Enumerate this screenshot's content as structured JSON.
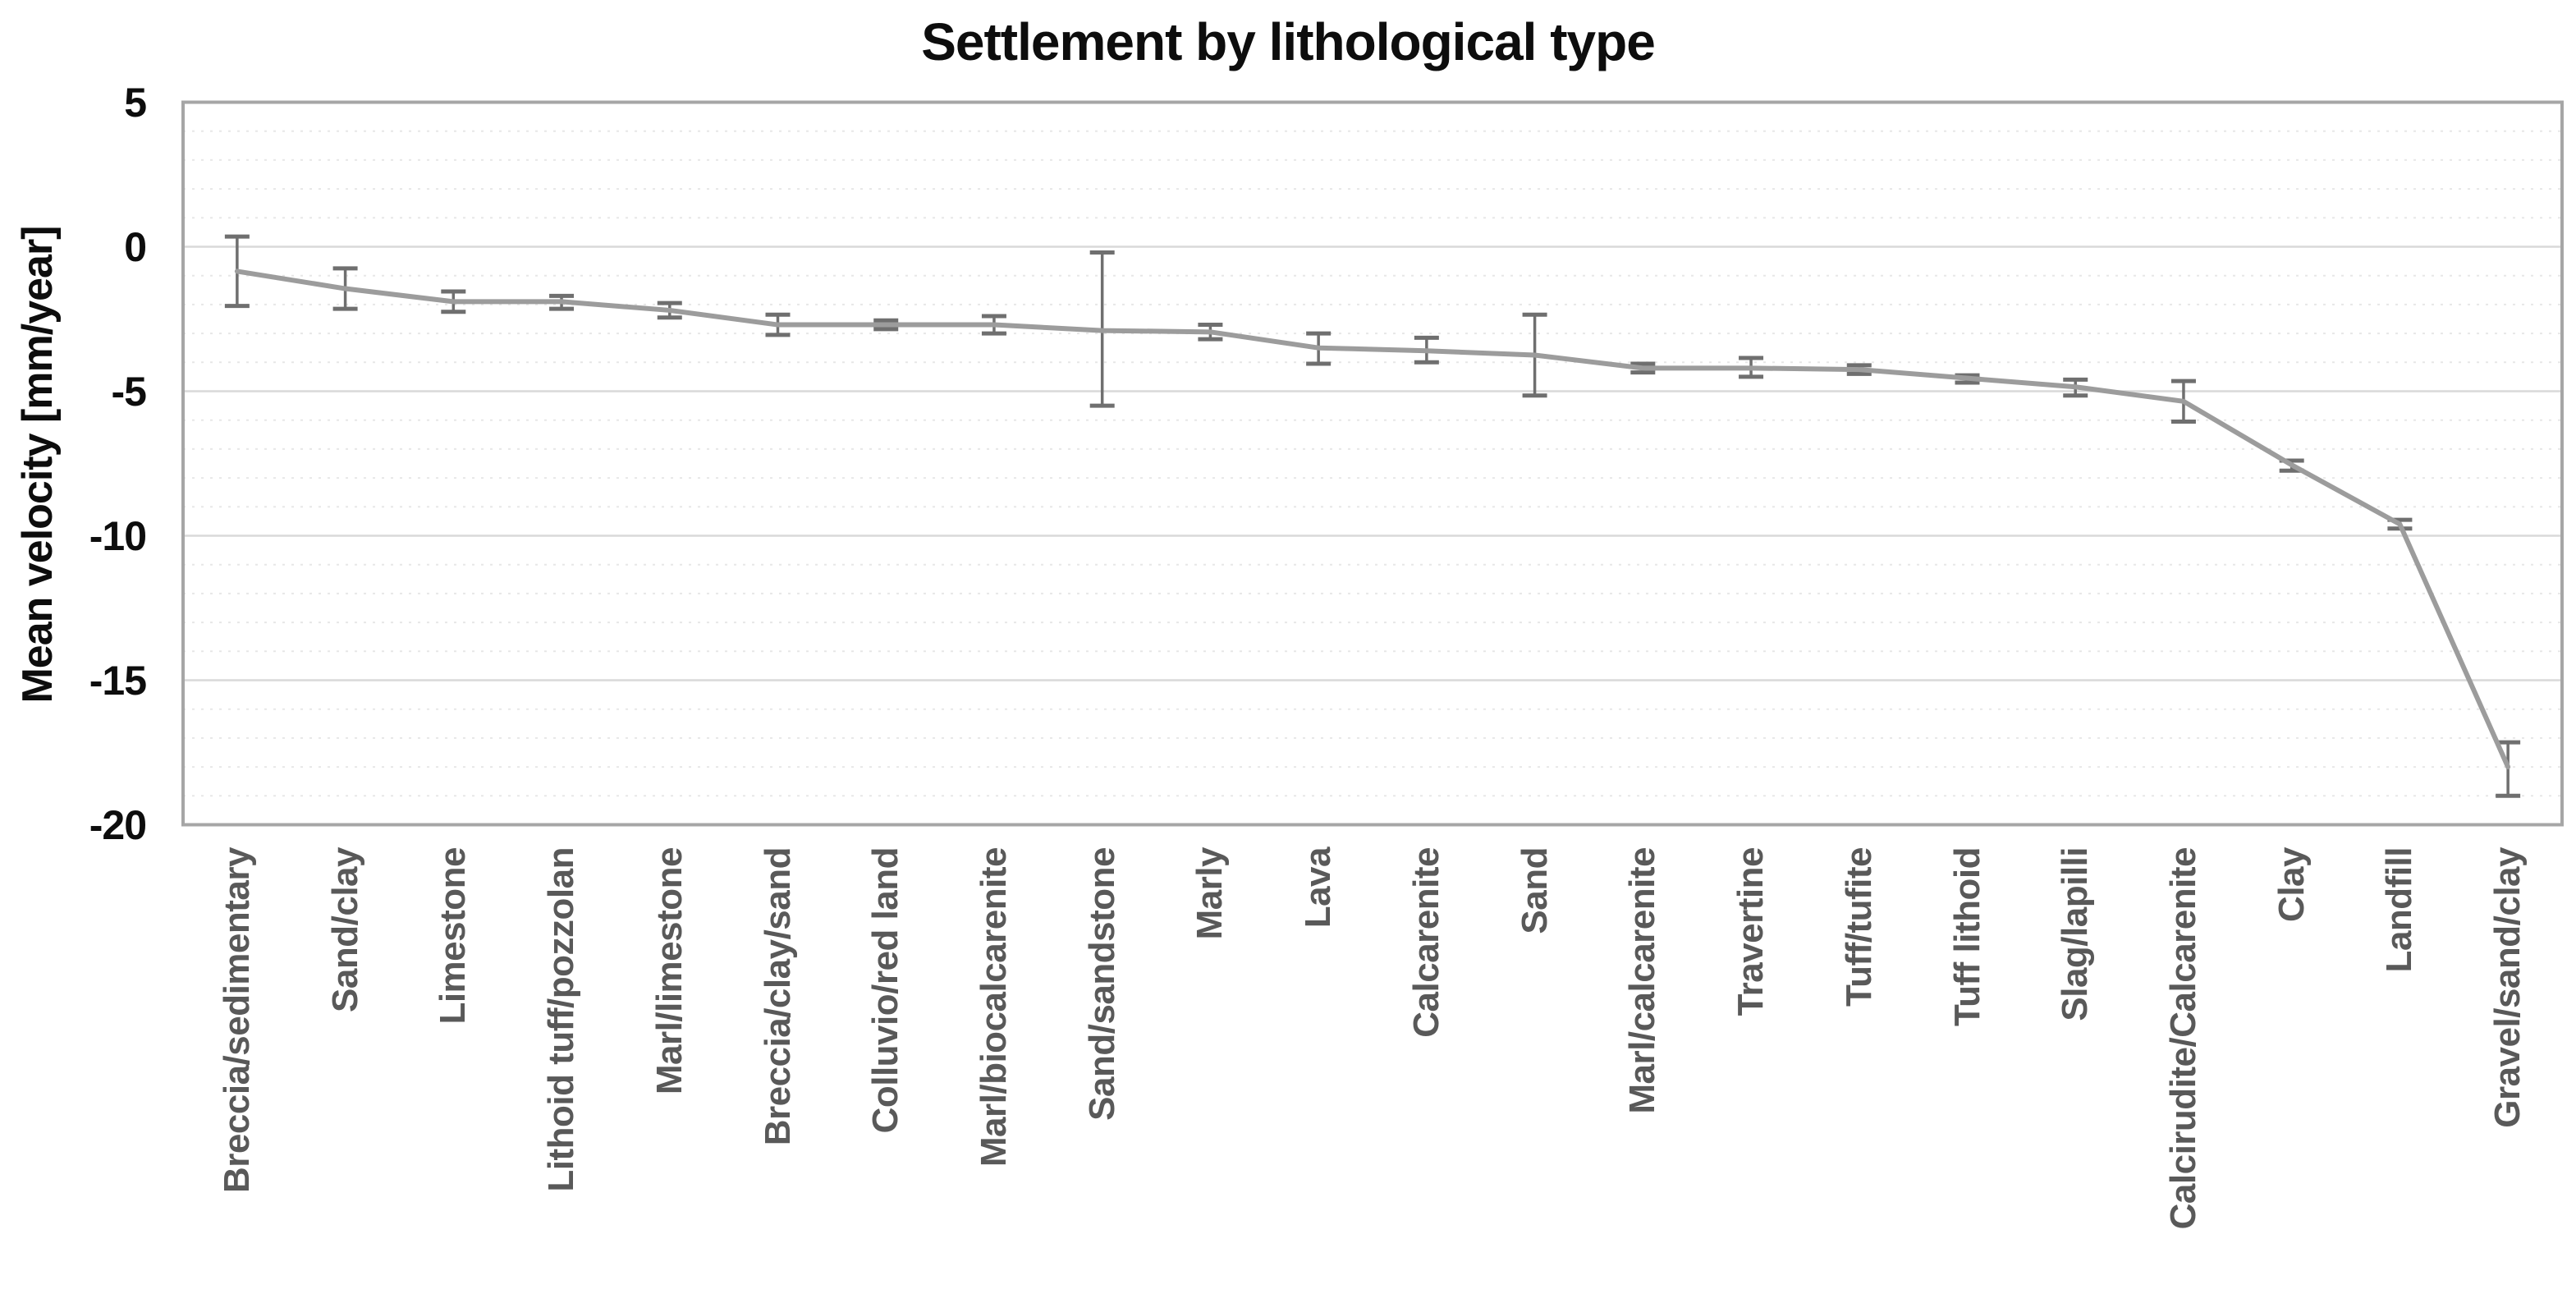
{
  "title": "Settlement by lithological type",
  "y_axis": {
    "label": "Mean velocity [mm/year]",
    "tick_labels": [
      "5",
      "0",
      "-5",
      "-10",
      "-15",
      "-20"
    ],
    "tick_values": [
      5,
      0,
      -5,
      -10,
      -15,
      -20
    ]
  },
  "colors": {
    "series_line": "#9c9c9c",
    "error_bar": "#6f6f6f",
    "major_gridline": "#d9d9d9",
    "minor_gridline": "#e7e7e7",
    "plot_border": "#a6a6a6",
    "title_text": "#0d0d0d",
    "category_text": "#595959"
  },
  "chart_data": {
    "type": "line",
    "title": "Settlement by lithological type",
    "xlabel": "",
    "ylabel": "Mean velocity [mm/year]",
    "ylim": [
      -20,
      5
    ],
    "y_major_step": 5,
    "y_minor_step": 1,
    "grid": "horizontal major solid, minor dotted",
    "legend_position": "none",
    "marker": "error-bar caps only",
    "categories": [
      "Breccia/sedimentary",
      "Sand/clay",
      "Limestone",
      "Lithoid tuff/pozzolan",
      "Marl/limestone",
      "Breccia/clay/sand",
      "Colluvio/red land",
      "Marl/biocalcarenite",
      "Sand/sandstone",
      "Marly",
      "Lava",
      "Calcarenite",
      "Sand",
      "Marl/calcarenite",
      "Travertine",
      "Tuff/tufite",
      "Tuff lithoid",
      "Slag/lapilli",
      "Calcirudite/Calcarenite",
      "Clay",
      "Landfill",
      "Gravel/sand/clay"
    ],
    "series": [
      {
        "name": "Mean velocity [mm/year]",
        "values": [
          -0.85,
          -1.45,
          -1.9,
          -1.9,
          -2.2,
          -2.7,
          -2.7,
          -2.7,
          -2.9,
          -2.95,
          -3.5,
          -3.6,
          -3.75,
          -4.2,
          -4.2,
          -4.25,
          -4.55,
          -4.85,
          -5.35,
          -7.55,
          -9.6,
          -18.0
        ],
        "error_upper_bound": [
          0.35,
          -0.75,
          -1.55,
          -1.7,
          -1.95,
          -2.35,
          -2.55,
          -2.4,
          -0.2,
          -2.7,
          -3.0,
          -3.15,
          -2.35,
          -4.05,
          -3.85,
          -4.1,
          -4.45,
          -4.6,
          -4.65,
          -7.4,
          -9.45,
          -17.15
        ],
        "error_lower_bound": [
          -2.05,
          -2.15,
          -2.25,
          -2.15,
          -2.45,
          -3.05,
          -2.85,
          -3.0,
          -5.5,
          -3.2,
          -4.05,
          -4.0,
          -5.15,
          -4.35,
          -4.5,
          -4.4,
          -4.7,
          -5.15,
          -6.05,
          -7.75,
          -9.75,
          -19.0
        ]
      }
    ]
  }
}
